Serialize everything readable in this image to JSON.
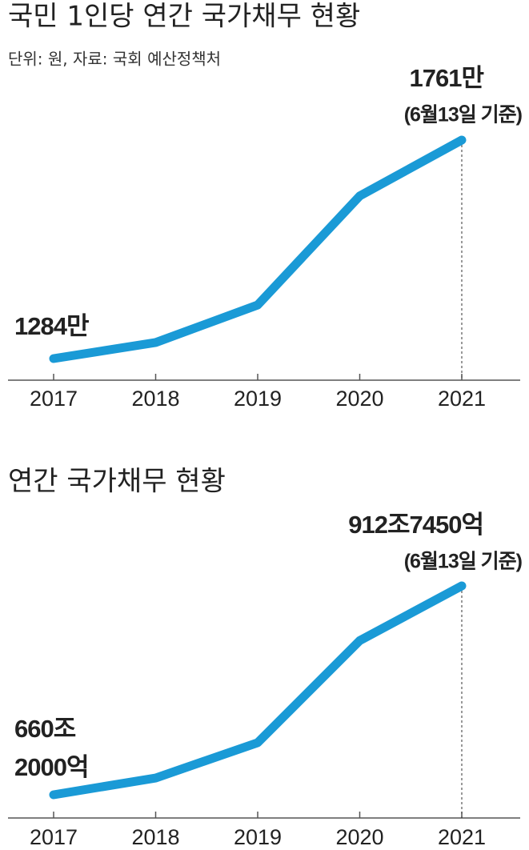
{
  "chart_data": [
    {
      "type": "line",
      "title": "국민 1인당 연간 국가채무 현황",
      "subtitle": "단위: 원, 자료: 국회 예산정책처",
      "categories": [
        "2017",
        "2018",
        "2019",
        "2020",
        "2021"
      ],
      "values": [
        1284,
        1319,
        1401,
        1639,
        1761
      ],
      "value_labels": [
        "1284만",
        null,
        null,
        null,
        "1761만"
      ],
      "annotation": "(6월13일 기준)",
      "color": "#1a9ad6"
    },
    {
      "type": "line",
      "title": "연간 국가채무 현황",
      "categories": [
        "2017",
        "2018",
        "2019",
        "2020",
        "2021"
      ],
      "values": [
        660.2,
        680.5,
        723.2,
        846.6,
        912.745
      ],
      "value_labels": [
        [
          "660조",
          "2000억"
        ],
        null,
        null,
        null,
        "912조7450억"
      ],
      "annotation": "(6월13일 기준)",
      "color": "#1a9ad6"
    }
  ]
}
